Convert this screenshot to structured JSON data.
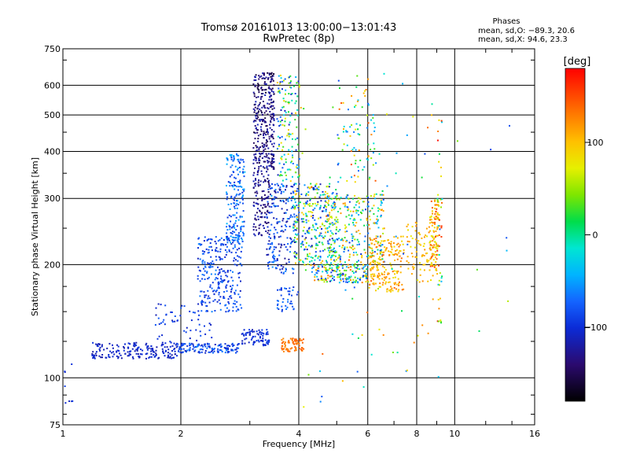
{
  "chart_data": {
    "type": "scatter",
    "title": "Tromsø 20161013 13:00:00−13:01:43",
    "subtitle": "RwPretec (8p)",
    "xlabel": "Frequency [MHz]",
    "ylabel": "Stationary phase Virtual Height [km]",
    "xscale": "log",
    "yscale": "log",
    "xlim": [
      1,
      16
    ],
    "ylim": [
      75,
      750
    ],
    "x_ticks": [
      1,
      2,
      4,
      6,
      8,
      10,
      16
    ],
    "x_tick_labels": [
      "1",
      "2",
      "4",
      "6",
      "8",
      "10",
      "16"
    ],
    "y_ticks": [
      75,
      100,
      200,
      300,
      400,
      500,
      600,
      750
    ],
    "y_tick_labels": [
      "75",
      "100",
      "200",
      "300",
      "400",
      "500",
      "600",
      "750"
    ],
    "grid": true,
    "stats": {
      "title": "Phases",
      "line_o": "mean, sd,O: −89.3, 20.6",
      "line_x": "mean, sd,X:  94.6, 23.3"
    },
    "colorbar": {
      "label": "[deg]",
      "ticks": [
        "100",
        "0",
        "−100"
      ],
      "tick_values": [
        100,
        0,
        -100
      ],
      "range": [
        -180,
        180
      ]
    },
    "clusters": [
      {
        "x": [
          1.0,
          1.08
        ],
        "y": [
          86,
          118
        ],
        "phase": [
          -110,
          -90
        ],
        "n": 8
      },
      {
        "x": [
          1.18,
          1.95
        ],
        "y": [
          113,
          125
        ],
        "phase": [
          -120,
          -95
        ],
        "n": 180
      },
      {
        "x": [
          1.7,
          2.4
        ],
        "y": [
          125,
          160
        ],
        "phase": [
          -115,
          -75
        ],
        "n": 60
      },
      {
        "x": [
          1.95,
          2.8
        ],
        "y": [
          117,
          124
        ],
        "phase": [
          -110,
          -60
        ],
        "n": 140
      },
      {
        "x": [
          2.2,
          2.85
        ],
        "y": [
          150,
          240
        ],
        "phase": [
          -110,
          -60
        ],
        "n": 260
      },
      {
        "x": [
          2.6,
          2.9
        ],
        "y": [
          230,
          400
        ],
        "phase": [
          -100,
          -40
        ],
        "n": 180
      },
      {
        "x": [
          2.85,
          3.35
        ],
        "y": [
          122,
          135
        ],
        "phase": [
          -115,
          -85
        ],
        "n": 80
      },
      {
        "x": [
          3.05,
          3.35
        ],
        "y": [
          240,
          360
        ],
        "phase": [
          -150,
          -110
        ],
        "n": 120
      },
      {
        "x": [
          3.05,
          3.45
        ],
        "y": [
          360,
          650
        ],
        "phase": [
          -160,
          -110
        ],
        "n": 320
      },
      {
        "x": [
          3.3,
          3.9
        ],
        "y": [
          190,
          330
        ],
        "phase": [
          -130,
          -50
        ],
        "n": 200
      },
      {
        "x": [
          3.5,
          4.0
        ],
        "y": [
          335,
          650
        ],
        "phase": [
          -120,
          100
        ],
        "n": 140
      },
      {
        "x": [
          3.6,
          4.1
        ],
        "y": [
          118,
          128
        ],
        "phase": [
          120,
          145
        ],
        "n": 70
      },
      {
        "x": [
          3.5,
          4.0
        ],
        "y": [
          150,
          175
        ],
        "phase": [
          -100,
          -60
        ],
        "n": 40
      },
      {
        "x": [
          3.85,
          5.0
        ],
        "y": [
          200,
          330
        ],
        "phase": [
          -120,
          110
        ],
        "n": 320
      },
      {
        "x": [
          4.3,
          6.0
        ],
        "y": [
          180,
          200
        ],
        "phase": [
          -110,
          140
        ],
        "n": 160
      },
      {
        "x": [
          4.7,
          6.6
        ],
        "y": [
          200,
          310
        ],
        "phase": [
          -100,
          130
        ],
        "n": 260
      },
      {
        "x": [
          6.0,
          7.4
        ],
        "y": [
          170,
          240
        ],
        "phase": [
          80,
          140
        ],
        "n": 200
      },
      {
        "x": [
          5.0,
          6.3
        ],
        "y": [
          330,
          600
        ],
        "phase": [
          -80,
          150
        ],
        "n": 80
      },
      {
        "x": [
          7.5,
          9.0
        ],
        "y": [
          180,
          260
        ],
        "phase": [
          70,
          130
        ],
        "n": 100
      },
      {
        "x": [
          8.6,
          9.1
        ],
        "y": [
          195,
          300
        ],
        "phase": [
          60,
          160
        ],
        "n": 90
      },
      {
        "x": [
          9.0,
          9.25
        ],
        "y": [
          140,
          500
        ],
        "phase": [
          -50,
          180
        ],
        "n": 40
      },
      {
        "x": [
          4.0,
          9.2
        ],
        "y": [
          80,
          650
        ],
        "phase": [
          -90,
          140
        ],
        "n": 90
      },
      {
        "x": [
          10.0,
          14.5
        ],
        "y": [
          105,
          520
        ],
        "phase": [
          -100,
          60
        ],
        "n": 8
      }
    ]
  }
}
